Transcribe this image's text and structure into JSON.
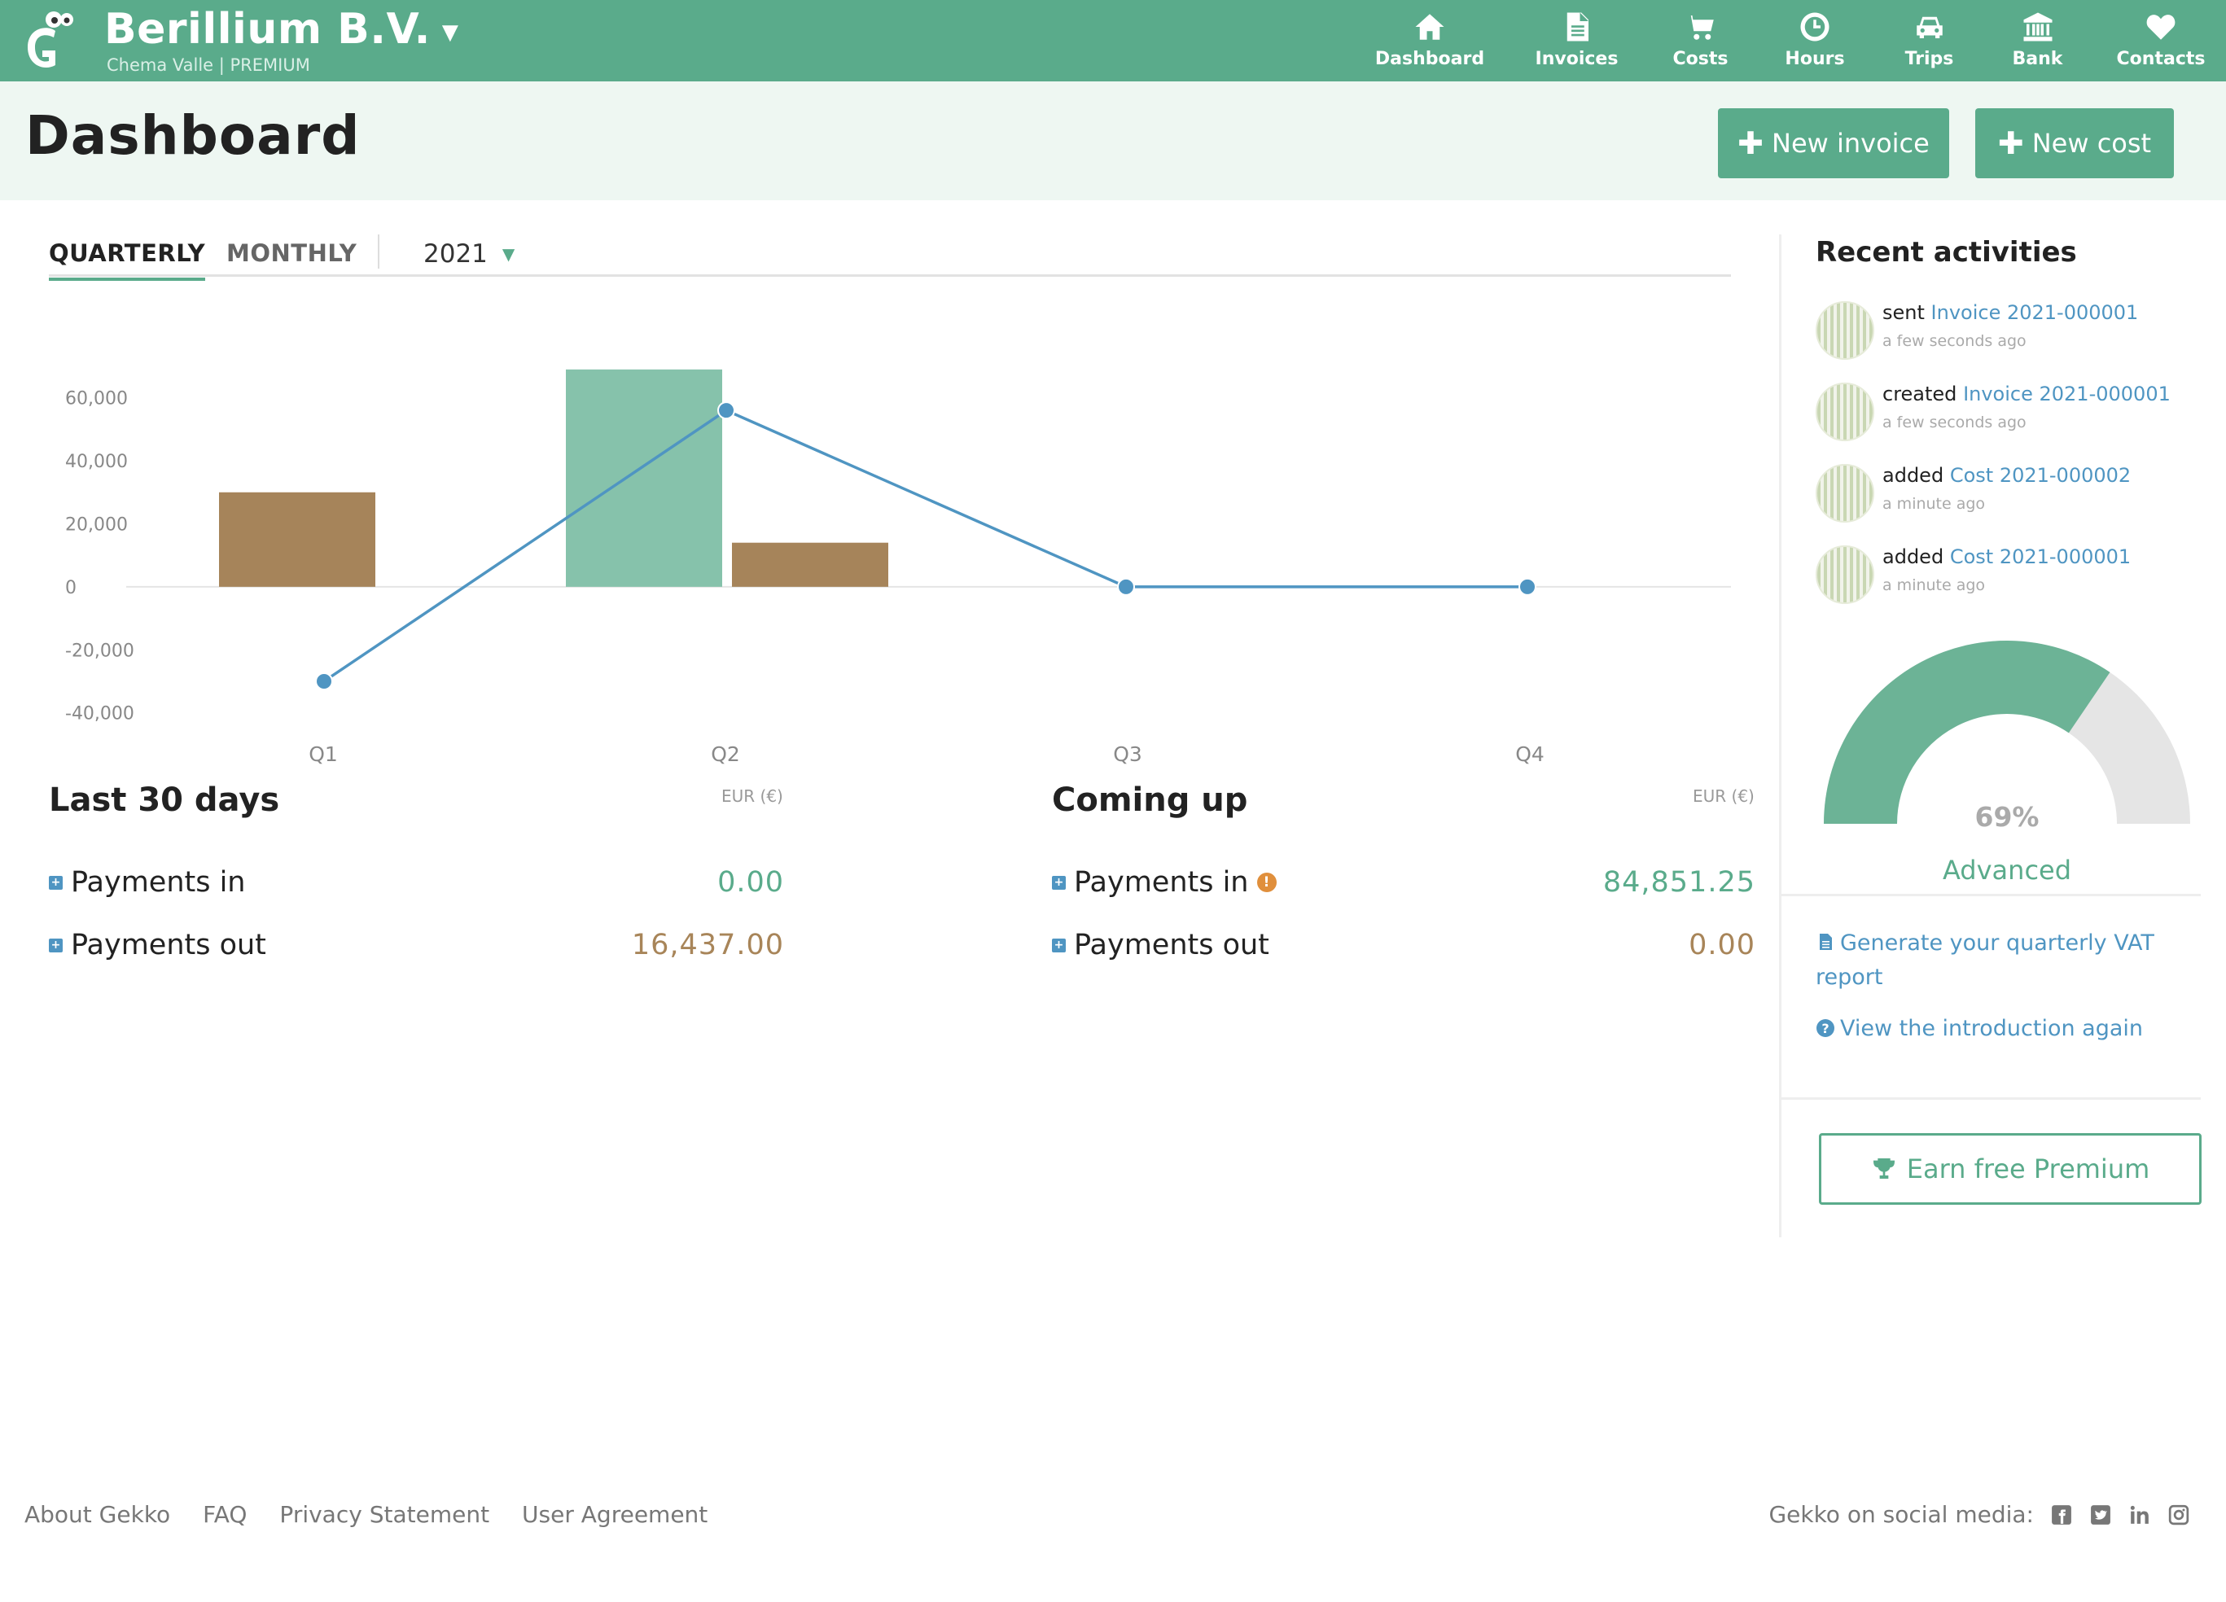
{
  "header": {
    "company": "Berillium B.V.",
    "subline": "Chema Valle | PREMIUM",
    "nav": [
      {
        "label": "Dashboard",
        "icon": "home-icon"
      },
      {
        "label": "Invoices",
        "icon": "document-icon"
      },
      {
        "label": "Costs",
        "icon": "cart-icon"
      },
      {
        "label": "Hours",
        "icon": "clock-icon"
      },
      {
        "label": "Trips",
        "icon": "car-icon"
      },
      {
        "label": "Bank",
        "icon": "bank-icon"
      },
      {
        "label": "Contacts",
        "icon": "heart-icon"
      }
    ]
  },
  "page": {
    "title": "Dashboard",
    "new_invoice": "New invoice",
    "new_cost": "New cost"
  },
  "tabs": {
    "quarterly": "QUARTERLY",
    "monthly": "MONTHLY",
    "year": "2021"
  },
  "chart_data": {
    "type": "bar",
    "categories": [
      "Q1",
      "Q2",
      "Q3",
      "Q4"
    ],
    "ylim": [
      -45000,
      70000
    ],
    "yticks": [
      60000,
      40000,
      20000,
      0,
      -20000,
      -40000
    ],
    "ytick_labels": [
      "60,000",
      "40,000",
      "20,000",
      "0",
      "-20,000",
      "-40,000"
    ],
    "series": [
      {
        "kind": "bar",
        "color": "#86c2ab",
        "values": [
          0,
          69000,
          0,
          0
        ]
      },
      {
        "kind": "bar",
        "color": "#a6845a",
        "values": [
          30000,
          14000,
          0,
          0
        ]
      },
      {
        "kind": "line",
        "color": "#4f95c2",
        "values": [
          -30000,
          56000,
          0,
          0
        ]
      }
    ]
  },
  "last30": {
    "title": "Last 30 days",
    "currency": "EUR (€)",
    "payments_in_label": "Payments in",
    "payments_in": "0.00",
    "payments_out_label": "Payments out",
    "payments_out": "16,437.00"
  },
  "coming": {
    "title": "Coming up",
    "currency": "EUR (€)",
    "payments_in_label": "Payments in",
    "payments_in": "84,851.25",
    "payments_out_label": "Payments out",
    "payments_out": "0.00"
  },
  "sidebar": {
    "title": "Recent activities",
    "activities": [
      {
        "verb": "sent",
        "link": "Invoice 2021-000001",
        "time": "a few seconds ago"
      },
      {
        "verb": "created",
        "link": "Invoice 2021-000001",
        "time": "a few seconds ago"
      },
      {
        "verb": "added",
        "link": "Cost 2021-000002",
        "time": "a minute ago"
      },
      {
        "verb": "added",
        "link": "Cost 2021-000001",
        "time": "a minute ago"
      }
    ],
    "gauge": {
      "percent": 69,
      "percent_label": "69%",
      "level": "Advanced",
      "fill": "#6cb396",
      "track": "#e5e5e5"
    },
    "vat_link": "Generate your quarterly VAT report",
    "intro_link": "View the introduction again",
    "earn_button": "Earn free Premium"
  },
  "footer": {
    "links": [
      "About Gekko",
      "FAQ",
      "Privacy Statement",
      "User Agreement"
    ],
    "social_label": "Gekko on social media:",
    "social_icons": [
      "facebook-icon",
      "twitter-icon",
      "linkedin-icon",
      "instagram-icon"
    ]
  }
}
